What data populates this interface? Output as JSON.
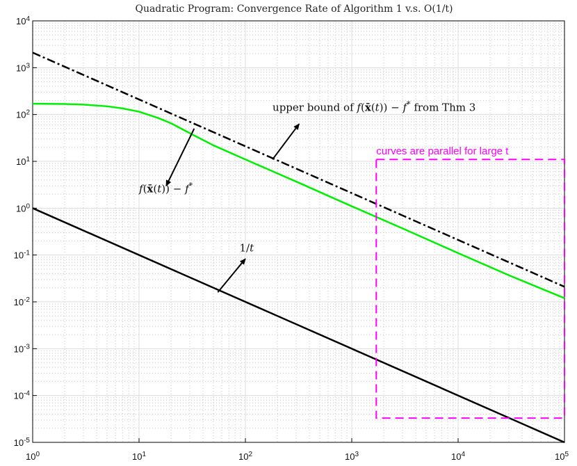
{
  "chart_data": {
    "type": "line",
    "title": "Quadratic Program: Convergence Rate of Algorithm 1 v.s. O(1/t)",
    "x_scale": "log",
    "y_scale": "log",
    "xlim": [
      1,
      100000
    ],
    "ylim": [
      1e-05,
      10000
    ],
    "grid": true,
    "minor_grid": true,
    "x_ticks": [
      {
        "value": 1,
        "base": "10",
        "exp": "0"
      },
      {
        "value": 10,
        "base": "10",
        "exp": "1"
      },
      {
        "value": 100,
        "base": "10",
        "exp": "2"
      },
      {
        "value": 1000,
        "base": "10",
        "exp": "3"
      },
      {
        "value": 10000,
        "base": "10",
        "exp": "4"
      },
      {
        "value": 100000,
        "base": "10",
        "exp": "5"
      }
    ],
    "y_ticks": [
      {
        "value": 1e-05,
        "base": "10",
        "exp": "-5"
      },
      {
        "value": 0.0001,
        "base": "10",
        "exp": "-4"
      },
      {
        "value": 0.001,
        "base": "10",
        "exp": "-3"
      },
      {
        "value": 0.01,
        "base": "10",
        "exp": "-2"
      },
      {
        "value": 0.1,
        "base": "10",
        "exp": "-1"
      },
      {
        "value": 1,
        "base": "10",
        "exp": "0"
      },
      {
        "value": 10,
        "base": "10",
        "exp": "1"
      },
      {
        "value": 100,
        "base": "10",
        "exp": "2"
      },
      {
        "value": 1000,
        "base": "10",
        "exp": "3"
      },
      {
        "value": 10000,
        "base": "10",
        "exp": "4"
      }
    ],
    "series": [
      {
        "key": "objective_gap",
        "color": "#00ee00",
        "style": "solid",
        "x": [
          1,
          2,
          3,
          5,
          7,
          10,
          15,
          20,
          30,
          50,
          100,
          300,
          1000,
          3000,
          10000,
          30000,
          100000
        ],
        "y": [
          170,
          168,
          163,
          150,
          135,
          115,
          85,
          65,
          40,
          22,
          11,
          3.7,
          1.1,
          0.37,
          0.11,
          0.037,
          0.012
        ]
      },
      {
        "key": "upper_bound",
        "color": "#000000",
        "style": "dashdot",
        "x": [
          1,
          100000
        ],
        "y": [
          2100,
          0.021
        ]
      },
      {
        "key": "one_over_t",
        "color": "#000000",
        "style": "solid",
        "x": [
          1,
          100000
        ],
        "y": [
          1,
          1e-05
        ]
      }
    ],
    "annotations": [
      {
        "key": "ub_label",
        "parts": [
          {
            "text": "upper bound of ",
            "italic": false
          },
          {
            "text": "f",
            "italic": true
          },
          {
            "text": "(",
            "italic": false
          },
          {
            "text": "x̄",
            "italic": false,
            "bold": true
          },
          {
            "text": "(",
            "italic": false
          },
          {
            "text": "t",
            "italic": true
          },
          {
            "text": ")) − ",
            "italic": false
          },
          {
            "text": "f",
            "italic": true
          },
          {
            "text": "*",
            "italic": false,
            "sup": true
          },
          {
            "text": " from Thm 3",
            "italic": false
          }
        ]
      },
      {
        "key": "gap_label",
        "parts": [
          {
            "text": "f",
            "italic": true
          },
          {
            "text": "(",
            "italic": false
          },
          {
            "text": "x̄",
            "italic": false,
            "bold": true
          },
          {
            "text": "(",
            "italic": false
          },
          {
            "text": "t",
            "italic": true
          },
          {
            "text": ")) − ",
            "italic": false
          },
          {
            "text": "f",
            "italic": true
          },
          {
            "text": "*",
            "italic": false,
            "sup": true
          }
        ]
      },
      {
        "key": "inv_label",
        "parts": [
          {
            "text": "1/",
            "italic": false
          },
          {
            "text": "t",
            "italic": true
          }
        ]
      },
      {
        "key": "parallel_label",
        "parts": [
          {
            "text": "curves are parallel for large t",
            "italic": false
          }
        ]
      }
    ],
    "highlight_box": {
      "x": [
        1700,
        100000
      ],
      "y": [
        3.3e-05,
        11
      ],
      "color": "#ff00ff",
      "style": "dashed"
    }
  }
}
